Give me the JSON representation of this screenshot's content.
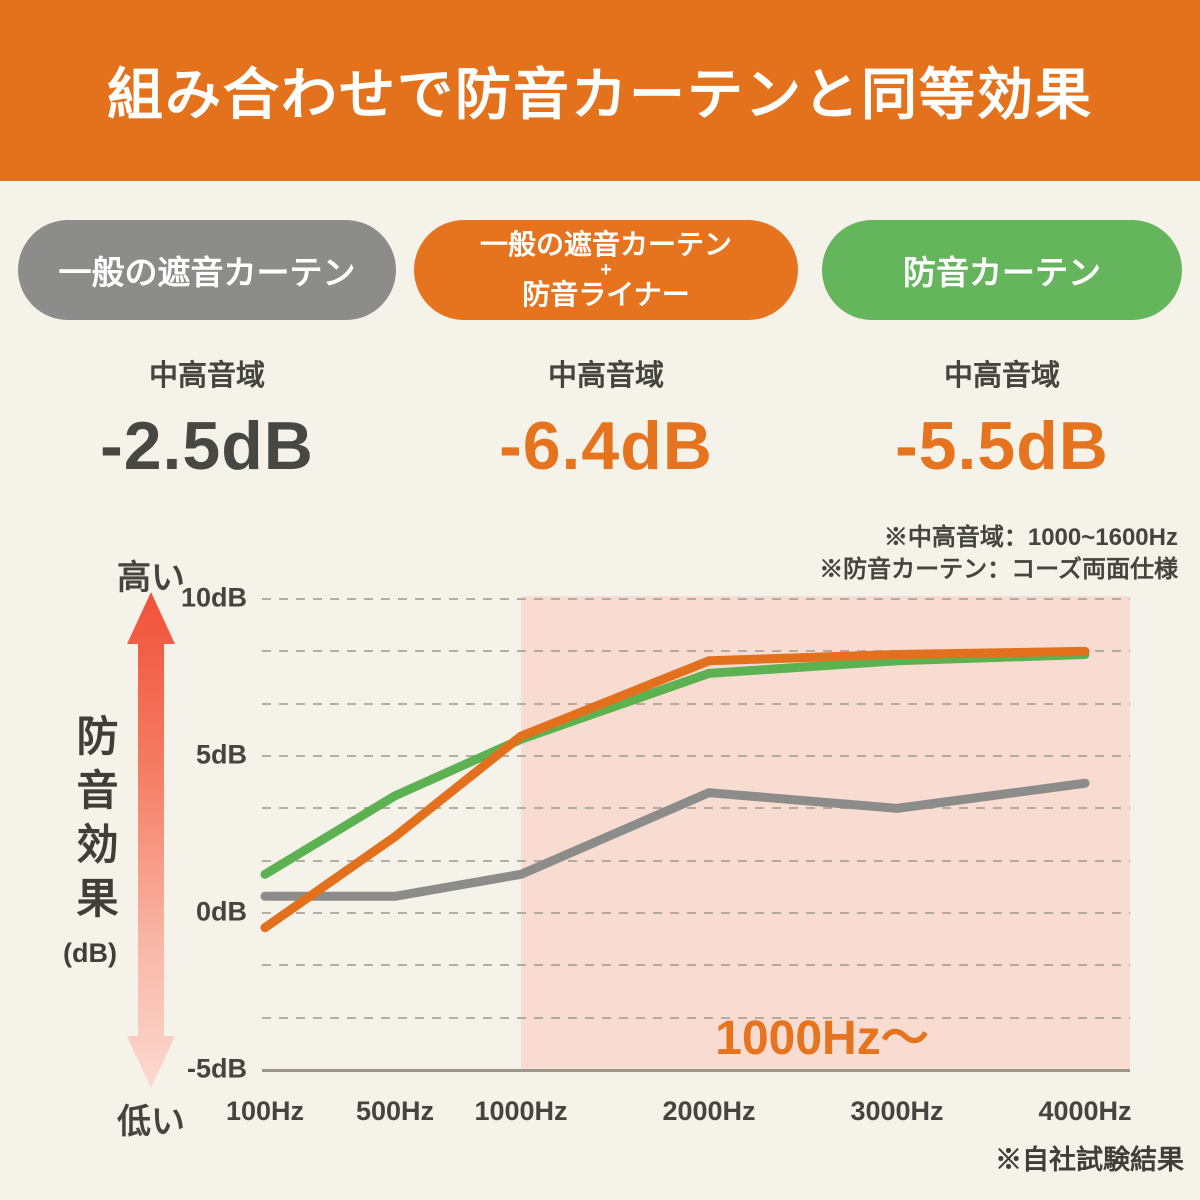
{
  "header": {
    "title": "組み合わせで防音カーテンと同等効果"
  },
  "comparison": {
    "columns": [
      {
        "pill_lines": [
          "一般の遮音カーテン"
        ],
        "range_label": "中高音域",
        "value": "-2.5dB"
      },
      {
        "pill_lines": [
          "一般の遮音カーテン",
          "+",
          "防音ライナー"
        ],
        "range_label": "中高音域",
        "value": "-6.4dB"
      },
      {
        "pill_lines": [
          "防音カーテン"
        ],
        "range_label": "中高音域",
        "value": "-5.5dB"
      }
    ],
    "notes": [
      "※中高音域：1000~1600Hz",
      "※防音カーテン：コーズ両面仕様"
    ]
  },
  "chart_data": {
    "type": "line",
    "title": "",
    "categories": [
      "100Hz",
      "500Hz",
      "1000Hz",
      "2000Hz",
      "3000Hz",
      "4000Hz"
    ],
    "series": [
      {
        "name": "一般の遮音カーテン",
        "color": "#8c8c8a",
        "values": [
          0.5,
          0.5,
          1.2,
          3.8,
          3.3,
          4.1
        ]
      },
      {
        "name": "一般の遮音カーテン＋防音ライナー",
        "color": "#e2701d",
        "values": [
          -0.5,
          2.4,
          5.6,
          8.0,
          8.2,
          8.3
        ]
      },
      {
        "name": "防音カーテン",
        "color": "#5cb150",
        "values": [
          1.2,
          3.7,
          5.5,
          7.6,
          8.0,
          8.2
        ]
      }
    ],
    "ylim": [
      -5,
      10
    ],
    "yticks": [
      {
        "label": "10dB",
        "value": 10
      },
      {
        "label": "5dB",
        "value": 5
      },
      {
        "label": "0dB",
        "value": 0
      },
      {
        "label": "-5dB",
        "value": -5
      }
    ],
    "y_axis_title": "防音効果",
    "y_axis_unit": "(dB)",
    "axis_high_label": "高い",
    "axis_low_label": "低い",
    "grid": "dashed horizontal, minor lines between labeled ticks",
    "legend": "none (series colors match pills above)",
    "highlight": {
      "label": "1000Hz～",
      "from_category": "1000Hz"
    },
    "footnote": "※自社試験結果"
  },
  "colors": {
    "accent_orange": "#e6731e",
    "green": "#65b55c",
    "gray": "#8c8c8a",
    "ink": "#45443f",
    "background": "#f5f2ea",
    "highlight_pink": "#f9dcd1"
  }
}
